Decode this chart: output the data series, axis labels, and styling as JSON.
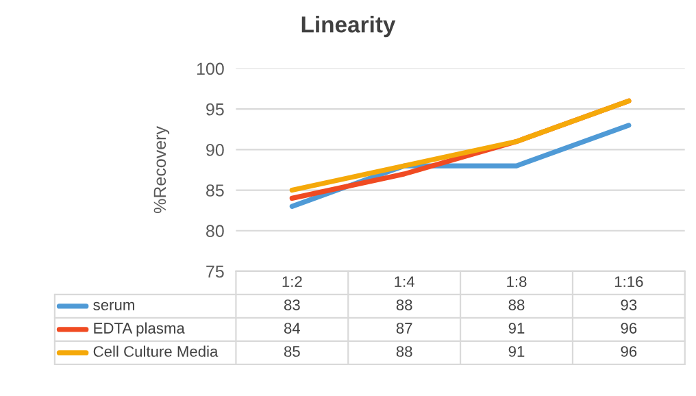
{
  "chart_data": {
    "type": "line",
    "title": "Linearity",
    "ylabel": "%Recovery",
    "categories": [
      "1:2",
      "1:4",
      "1:8",
      "1:16"
    ],
    "series": [
      {
        "name": "serum",
        "color": "#4f9ad6",
        "values": [
          83,
          88,
          88,
          93
        ]
      },
      {
        "name": "EDTA plasma",
        "color": "#f04b22",
        "values": [
          84,
          87,
          91,
          96
        ]
      },
      {
        "name": "Cell Culture Media",
        "color": "#f5a90a",
        "values": [
          85,
          88,
          91,
          96
        ]
      }
    ],
    "ylim": [
      75,
      100
    ],
    "yticks": [
      75,
      80,
      85,
      90,
      95,
      100
    ],
    "grid": "y",
    "legend": "bottom",
    "data_labels": true,
    "line_style": "solid"
  }
}
